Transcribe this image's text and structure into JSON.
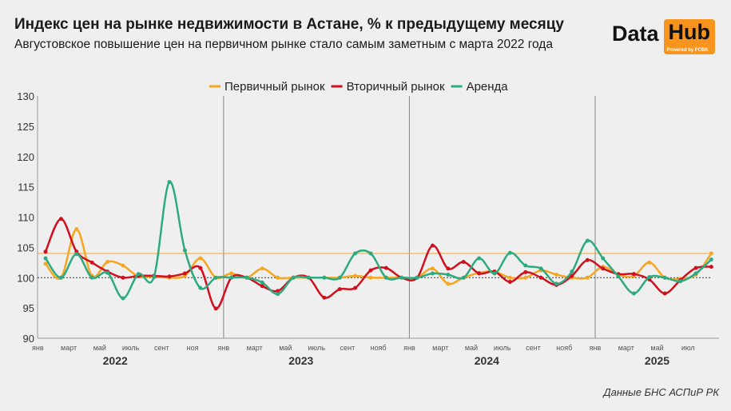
{
  "header": {
    "title": "Индекс цен на рынке недвижимости в Астане, % к предыдущему месяцу",
    "subtitle": "Августовское повышение цен на первичном рынке стало самым заметным с марта 2022 года"
  },
  "logo": {
    "text1": "Data",
    "text2": "Hub",
    "powered": "Powered by FCBK"
  },
  "source": "Данные БНС АСПиР РК",
  "chart_data": {
    "type": "line",
    "title": "Индекс цен на рынке недвижимости в Астане, % к предыдущему месяцу",
    "ylim": [
      90,
      130
    ],
    "yticks": [
      90,
      95,
      100,
      105,
      110,
      115,
      120,
      125,
      130
    ],
    "reference_lines": [
      {
        "value": 100,
        "style": "dotted"
      },
      {
        "value": 104,
        "style": "solid",
        "color": "#f5a623"
      }
    ],
    "x_tick_labels": [
      {
        "month": 0,
        "label": "янв"
      },
      {
        "month": 2,
        "label": "март"
      },
      {
        "month": 4,
        "label": "май"
      },
      {
        "month": 6,
        "label": "июль"
      },
      {
        "month": 8,
        "label": "сент"
      },
      {
        "month": 10,
        "label": "ноя"
      },
      {
        "month": 12,
        "label": "янв"
      },
      {
        "month": 14,
        "label": "март"
      },
      {
        "month": 16,
        "label": "май"
      },
      {
        "month": 18,
        "label": "июль"
      },
      {
        "month": 20,
        "label": "сент"
      },
      {
        "month": 22,
        "label": "нояб"
      },
      {
        "month": 24,
        "label": "янв"
      },
      {
        "month": 26,
        "label": "март"
      },
      {
        "month": 28,
        "label": "май"
      },
      {
        "month": 30,
        "label": "июль"
      },
      {
        "month": 32,
        "label": "сент"
      },
      {
        "month": 34,
        "label": "нояб"
      },
      {
        "month": 36,
        "label": "янв"
      },
      {
        "month": 38,
        "label": "март"
      },
      {
        "month": 40,
        "label": "май"
      },
      {
        "month": 42,
        "label": "июл"
      }
    ],
    "years": [
      {
        "month": 4.5,
        "label": "2022"
      },
      {
        "month": 16.5,
        "label": "2023"
      },
      {
        "month": 28.5,
        "label": "2024"
      },
      {
        "month": 39.5,
        "label": "2025"
      }
    ],
    "series": [
      {
        "name": "Первичный рынок",
        "color": "#f5a623",
        "values": [
          102.3,
          100,
          108,
          100.3,
          102.6,
          102,
          100.2,
          100.2,
          100,
          100.3,
          103.2,
          100,
          100.7,
          100,
          101.5,
          100,
          100,
          100,
          100,
          100,
          100.3,
          100,
          100,
          100,
          100,
          101.5,
          99,
          100,
          100.8,
          101,
          100,
          100,
          101.2,
          100.5,
          100,
          100,
          101.8,
          100.5,
          100.3,
          102.5,
          100,
          99.8,
          100.5,
          104
        ]
      },
      {
        "name": "Вторичный рынок",
        "color": "#d0101e",
        "values": [
          104.3,
          109.7,
          104.3,
          102.5,
          101,
          100,
          100.3,
          100.3,
          100.2,
          100.7,
          101.6,
          94.9,
          100,
          100,
          98.6,
          97.8,
          100,
          100,
          96.7,
          98.1,
          98.3,
          101.2,
          101.6,
          100,
          100,
          105.3,
          101.5,
          102.6,
          100.7,
          101,
          99.3,
          100.9,
          100,
          98.8,
          100.3,
          102.9,
          101.5,
          100.6,
          100.6,
          99.7,
          97.4,
          99.6,
          101.6,
          101.8
        ]
      },
      {
        "name": "Аренда",
        "color": "#2eaa80",
        "values": [
          103.2,
          100,
          103.9,
          100,
          100.8,
          96.6,
          100.6,
          100.1,
          115.8,
          104.5,
          98.3,
          100,
          100,
          100,
          99.2,
          97.3,
          100,
          100,
          100,
          100,
          104,
          104,
          100,
          100,
          100,
          100.7,
          100.5,
          100,
          103.2,
          100.7,
          104.1,
          102,
          101.5,
          99,
          101,
          106.1,
          103.2,
          100.2,
          97.4,
          100.1,
          100,
          99.4,
          100.7,
          103
        ]
      }
    ]
  }
}
